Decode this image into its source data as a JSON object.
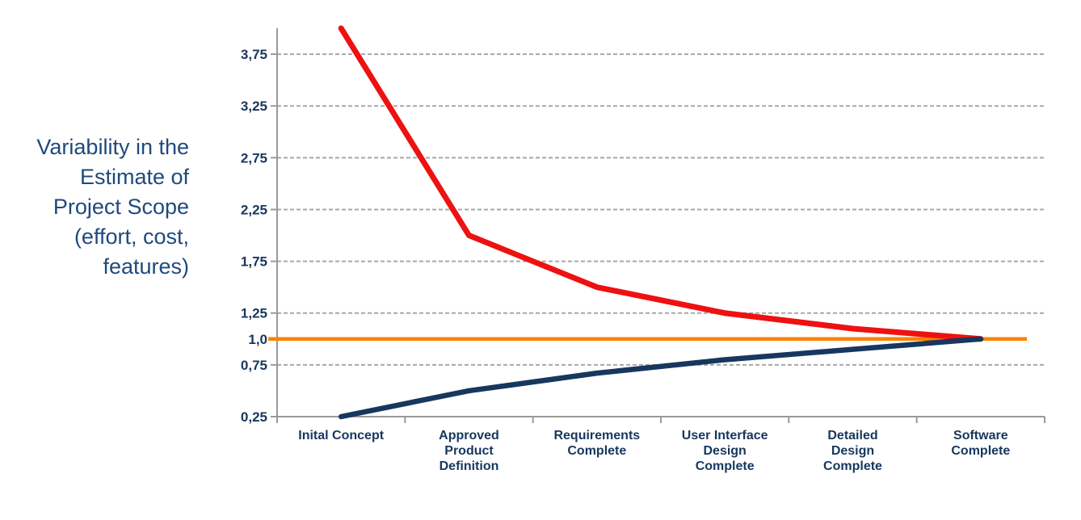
{
  "colors": {
    "background": "#ffffff",
    "axis": "#9a9a9a",
    "gridline": "#a8a8a8",
    "tick_label": "#17375e",
    "category_label": "#17375e",
    "side_label": "#1f497d",
    "upper_line": "#ee1111",
    "lower_line": "#17375e",
    "reference_line": "#fb8100"
  },
  "chart_data": {
    "type": "line",
    "categories": [
      "Inital Concept",
      "Approved\nProduct\nDefinition",
      "Requirements\nComplete",
      "User Interface\nDesign\nComplete",
      "Detailed\nDesign\nComplete",
      "Software\nComplete"
    ],
    "series": [
      {
        "name": "upper-estimate",
        "color": "#ee1111",
        "width": 7,
        "values": [
          4.0,
          2.0,
          1.5,
          1.25,
          1.1,
          1.0
        ]
      },
      {
        "name": "lower-estimate",
        "color": "#17375e",
        "width": 6.5,
        "values": [
          0.25,
          0.5,
          0.67,
          0.8,
          0.9,
          1.0
        ]
      }
    ],
    "reference_line": {
      "name": "final-scope-baseline",
      "value": 1.0,
      "color": "#fb8100",
      "width": 4.5
    },
    "y_ticks": [
      {
        "value": 3.75,
        "label": "3,75",
        "gridline": true
      },
      {
        "value": 3.25,
        "label": "3,25",
        "gridline": true
      },
      {
        "value": 2.75,
        "label": "2,75",
        "gridline": true
      },
      {
        "value": 2.25,
        "label": "2,25",
        "gridline": true
      },
      {
        "value": 1.75,
        "label": "1,75",
        "gridline": true
      },
      {
        "value": 1.25,
        "label": "1,25",
        "gridline": true
      },
      {
        "value": 1.0,
        "label": "1,0",
        "gridline": false
      },
      {
        "value": 0.75,
        "label": "0,75",
        "gridline": true
      },
      {
        "value": 0.25,
        "label": "0,25",
        "gridline": false
      }
    ],
    "ylim": [
      0.25,
      4.0
    ],
    "ylabel": "Variability in the\nEstimate of\nProject Scope\n(effort, cost,\nfeatures)",
    "xlabel": "",
    "title": "",
    "grid": "horizontal-dashed",
    "legend": null
  }
}
